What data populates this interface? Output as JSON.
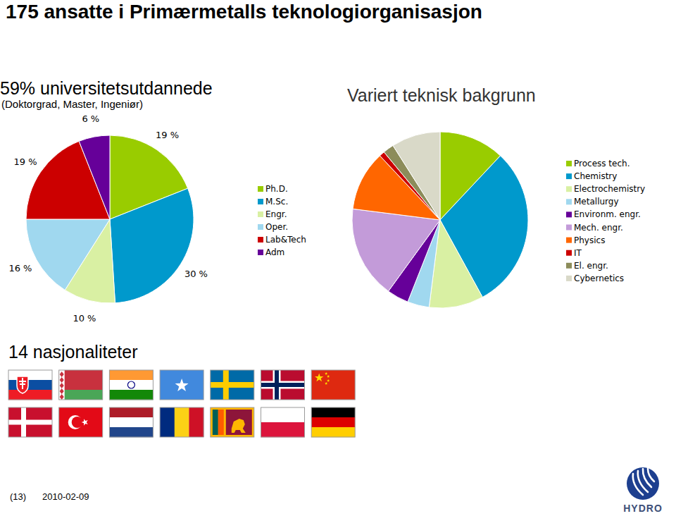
{
  "title": "175 ansatte i Primærmetalls teknologiorganisasjon",
  "chart_data": [
    {
      "type": "pie",
      "title": "59% universitetsutdannede",
      "subtitle": "(Doktorgrad, Master, Ingeniør)",
      "categories": [
        "Ph.D.",
        "M.Sc.",
        "Engr.",
        "Oper.",
        "Lab&Tech",
        "Adm"
      ],
      "values": [
        19,
        30,
        10,
        16,
        19,
        6
      ],
      "value_labels": [
        "19 %",
        "30 %",
        "10 %",
        "16 %",
        "19 %",
        "6 %"
      ],
      "colors": [
        "#99cc00",
        "#0099cc",
        "#d9f0a3",
        "#a0d8ef",
        "#cc0000",
        "#660099"
      ],
      "data_labels": true,
      "legend": "right"
    },
    {
      "type": "pie",
      "title": "Variert teknisk bakgrunn",
      "categories": [
        "Process tech.",
        "Chemistry",
        "Electrochemistry",
        "Metallurgy",
        "Environm. engr.",
        "Mech. engr.",
        "Physics",
        "IT",
        "El. engr.",
        "Cybernetics"
      ],
      "values": [
        12,
        30,
        10,
        4,
        4,
        17,
        11,
        1,
        2,
        9
      ],
      "colors": [
        "#99cc00",
        "#0099cc",
        "#d9f0a3",
        "#a0d8ef",
        "#660099",
        "#c39bd9",
        "#ff6600",
        "#cc0000",
        "#8c8c5a",
        "#d9d9c8"
      ],
      "data_labels": false,
      "legend": "right"
    }
  ],
  "nationalities": "14 nasjonaliteter",
  "footer": {
    "page": "(13)",
    "date": "2010-02-09"
  },
  "logo": "HYDRO"
}
